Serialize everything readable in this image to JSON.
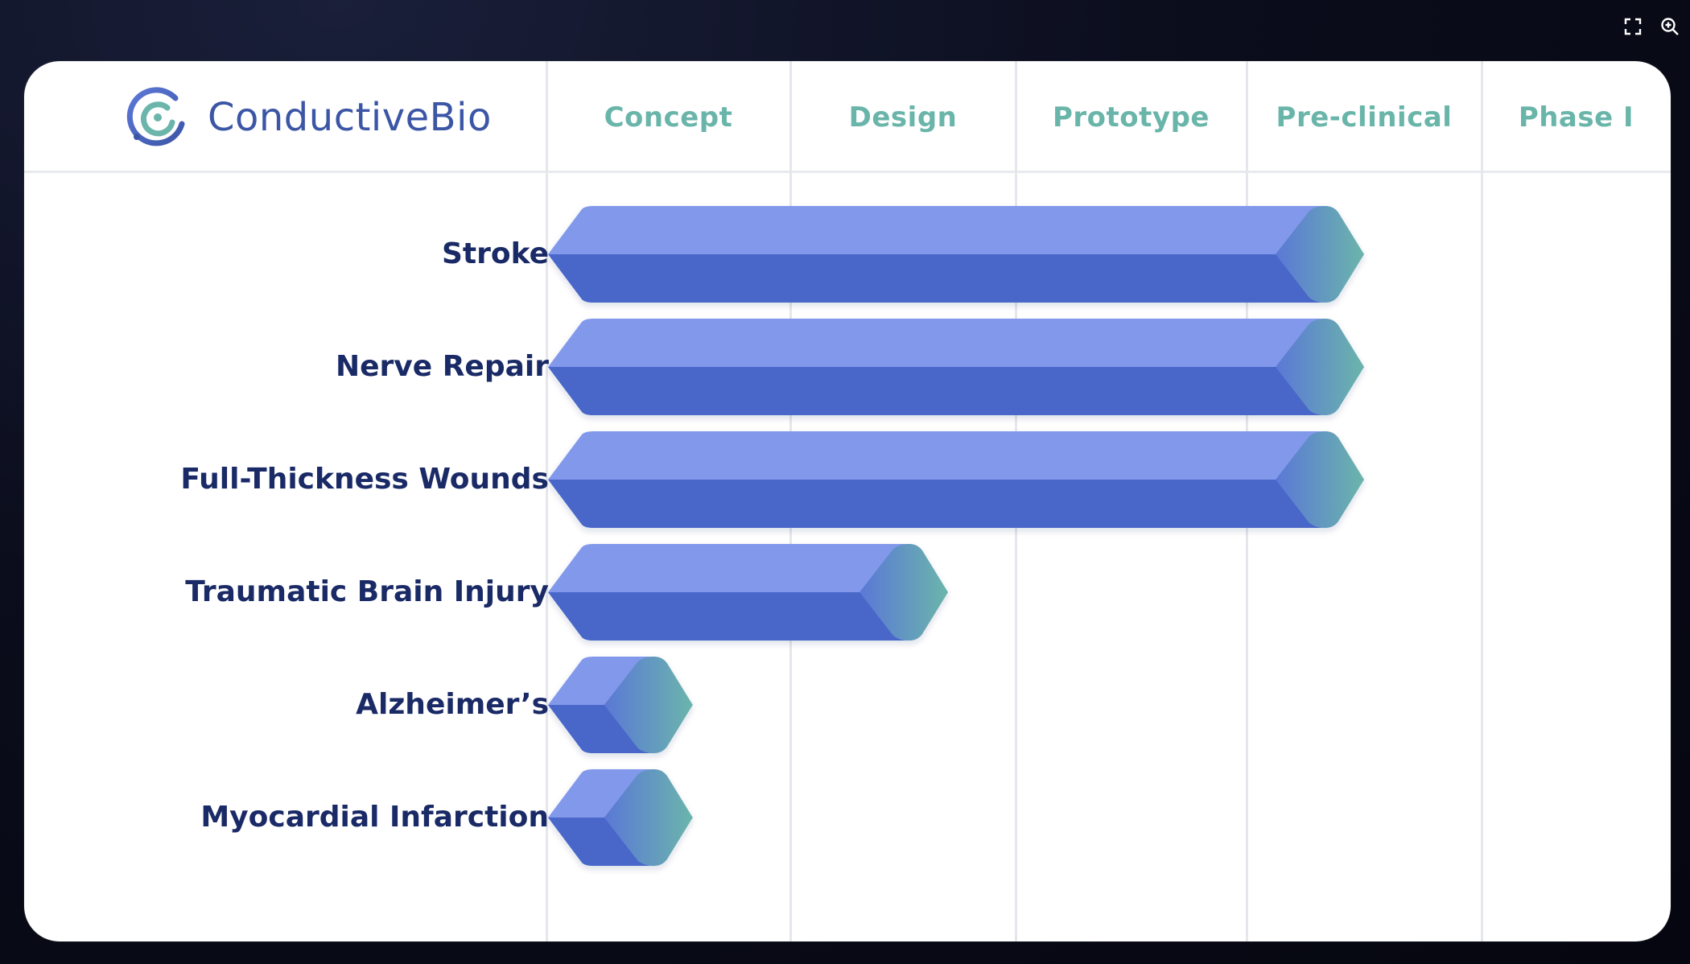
{
  "brand": {
    "name": "ConductiveBio",
    "logo_icon": "conductivebio-logo-icon"
  },
  "toolbar": {
    "fullscreen_icon": "fullscreen-icon",
    "zoom_icon": "zoom-in-icon"
  },
  "colors": {
    "bar_top": "#8299eb",
    "bar_bottom": "#4a66c9",
    "tip_start": "#5a78d6",
    "tip_end": "#6bb5ab",
    "stage_label": "#6ab5aa",
    "row_label": "#1a2a66",
    "brand": "#3c56a6"
  },
  "chart_data": {
    "type": "bar",
    "orientation": "horizontal",
    "title": "",
    "xlabel": "",
    "ylabel": "",
    "stages": [
      "Concept",
      "Design",
      "Prototype",
      "Pre-clinical",
      "Phase I"
    ],
    "categories": [
      "Stroke",
      "Nerve Repair",
      "Full-Thickness Wounds",
      "Traumatic Brain Injury",
      "Alzheimer’s",
      "Myocardial Infarction"
    ],
    "values": [
      3.5,
      3.5,
      3.5,
      1.7,
      0.6,
      0.6
    ],
    "xlim": [
      0,
      5
    ],
    "grid": true,
    "legend": "none"
  }
}
